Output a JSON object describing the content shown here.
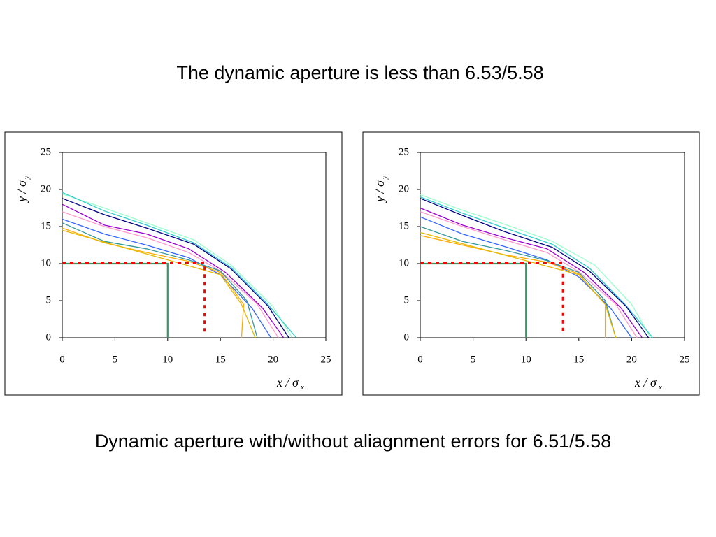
{
  "title": "The dynamic aperture is less than 6.53/5.58",
  "caption": "Dynamic aperture with/without aliagnment errors for 6.51/5.58",
  "chart_data": [
    {
      "type": "line",
      "xlim": [
        0,
        25
      ],
      "ylim": [
        0,
        25
      ],
      "xticks": [
        0,
        5,
        10,
        15,
        20,
        25
      ],
      "yticks": [
        0,
        5,
        10,
        15,
        20,
        25
      ],
      "xlabel": "x / σ",
      "xlabel_sub": "x",
      "ylabel": "y / σ",
      "ylabel_sub": "y",
      "series": [
        {
          "color": "#99ffcc",
          "x": [
            0,
            4,
            8,
            12.5,
            16,
            20,
            21.8
          ],
          "values": [
            19.4,
            17.5,
            15.5,
            13.2,
            9.8,
            4.2,
            0
          ]
        },
        {
          "color": "#33cccc",
          "x": [
            0,
            4,
            8,
            12.5,
            16,
            19.5,
            22.2
          ],
          "values": [
            19.6,
            17.1,
            15.2,
            12.8,
            9.5,
            4.5,
            0
          ]
        },
        {
          "color": "#000080",
          "x": [
            0,
            4,
            8,
            12.5,
            16,
            19.5,
            21.5
          ],
          "values": [
            18.8,
            16.6,
            14.8,
            12.6,
            9.3,
            4.3,
            0
          ]
        },
        {
          "color": "#9900cc",
          "x": [
            0,
            4,
            8,
            12,
            15.5,
            19,
            21
          ],
          "values": [
            18,
            15.2,
            14,
            12,
            8.8,
            4,
            0
          ]
        },
        {
          "color": "#ff99cc",
          "x": [
            0,
            4,
            8,
            12,
            15,
            18.5,
            20.5
          ],
          "values": [
            17,
            15,
            13.5,
            11.5,
            9,
            4.5,
            0
          ]
        },
        {
          "color": "#3366ff",
          "x": [
            0,
            4,
            8,
            12,
            15,
            18,
            19.8
          ],
          "values": [
            16,
            14,
            12.5,
            10.8,
            8.5,
            4,
            0
          ]
        },
        {
          "color": "#339999",
          "x": [
            0,
            4,
            8,
            12,
            15,
            17.5,
            18.5
          ],
          "values": [
            15.5,
            13,
            12,
            10.5,
            9,
            5,
            0
          ]
        },
        {
          "color": "#ffaa00",
          "x": [
            0,
            4,
            8,
            12,
            15,
            17.2,
            17
          ],
          "values": [
            14.8,
            12.8,
            11.5,
            10.3,
            8.8,
            4.5,
            0
          ]
        },
        {
          "color": "#e6b800",
          "x": [
            0,
            15,
            17,
            18.3
          ],
          "values": [
            14.5,
            8.5,
            4.5,
            0
          ]
        },
        {
          "color": "#339966",
          "x": [
            0,
            10,
            10
          ],
          "values": [
            10,
            10,
            0
          ]
        },
        {
          "color": "#ff0000",
          "dashed": true,
          "x": [
            0,
            13.5,
            13.5
          ],
          "values": [
            10.1,
            10.1,
            0.8
          ]
        }
      ]
    },
    {
      "type": "line",
      "xlim": [
        0,
        25
      ],
      "ylim": [
        0,
        25
      ],
      "xticks": [
        0,
        5,
        10,
        15,
        20,
        25
      ],
      "yticks": [
        0,
        5,
        10,
        15,
        20,
        25
      ],
      "xlabel": "x / σ",
      "xlabel_sub": "x",
      "ylabel": "y / σ",
      "ylabel_sub": "y",
      "series": [
        {
          "color": "#99ffcc",
          "x": [
            0,
            4,
            8,
            12.5,
            16.5,
            20,
            21.8
          ],
          "values": [
            19.3,
            17.2,
            15.3,
            13,
            9.8,
            4.5,
            0
          ]
        },
        {
          "color": "#33cccc",
          "x": [
            0,
            4,
            8,
            12.5,
            16,
            19.5,
            22
          ],
          "values": [
            19,
            16.8,
            14.8,
            12.6,
            9.4,
            4.3,
            0
          ]
        },
        {
          "color": "#000080",
          "x": [
            0,
            4,
            8,
            12.5,
            16,
            19.5,
            21.6
          ],
          "values": [
            18.8,
            16.5,
            14.3,
            12.2,
            9,
            4.2,
            0
          ]
        },
        {
          "color": "#9900cc",
          "x": [
            0,
            4,
            8,
            12,
            15.5,
            19,
            21
          ],
          "values": [
            17.5,
            15.2,
            13.5,
            12,
            8.8,
            4,
            0
          ]
        },
        {
          "color": "#ff99cc",
          "x": [
            0,
            4,
            8,
            12,
            15,
            18.5,
            20.5
          ],
          "values": [
            17,
            15,
            13.2,
            11.5,
            8.9,
            4.5,
            0
          ]
        },
        {
          "color": "#3366ff",
          "x": [
            0,
            4,
            8,
            12,
            15,
            18,
            20
          ],
          "values": [
            16.3,
            14,
            12.3,
            10.5,
            8.2,
            4,
            0
          ]
        },
        {
          "color": "#339999",
          "x": [
            0,
            4,
            8,
            12,
            15,
            17.5,
            18.5
          ],
          "values": [
            15,
            13,
            11.8,
            10.4,
            8.8,
            5,
            0
          ]
        },
        {
          "color": "#ffaa00",
          "x": [
            0,
            4,
            8,
            12,
            15,
            17.5,
            17.5
          ],
          "values": [
            13.8,
            12.5,
            11.2,
            10.2,
            8.6,
            4.5,
            0
          ]
        },
        {
          "color": "#e6b800",
          "x": [
            0,
            15,
            17.5,
            18.5
          ],
          "values": [
            14.2,
            8.5,
            4.5,
            0
          ]
        },
        {
          "color": "#339966",
          "x": [
            0,
            10,
            10
          ],
          "values": [
            10,
            10,
            0
          ]
        },
        {
          "color": "#ff0000",
          "dashed": true,
          "x": [
            0,
            13.5,
            13.5
          ],
          "values": [
            10.1,
            10.1,
            0.8
          ]
        }
      ]
    }
  ]
}
